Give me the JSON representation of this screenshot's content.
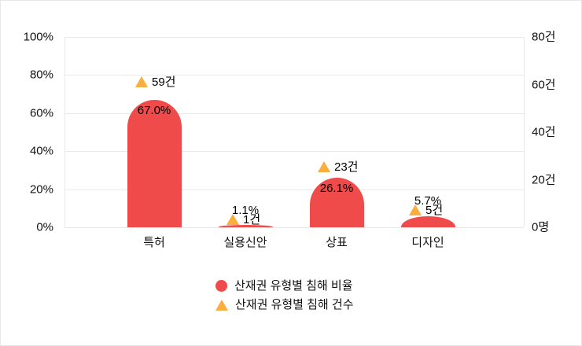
{
  "chart_data": {
    "type": "bar",
    "categories": [
      "특허",
      "실용신안",
      "상표",
      "디자인"
    ],
    "series": [
      {
        "name": "산재권 유형별 침해 비율",
        "type": "bar",
        "axis": "left",
        "unit": "%",
        "values": [
          67.0,
          1.1,
          26.1,
          5.7
        ],
        "labels": [
          "67.0%",
          "1.1%",
          "26.1%",
          "5.7%"
        ],
        "color": "#F04B4B"
      },
      {
        "name": "산재권 유형별 침해 건수",
        "type": "triangle",
        "axis": "right",
        "unit": "건",
        "values": [
          59,
          1,
          23,
          5
        ],
        "labels": [
          "59건",
          "1건",
          "23건",
          "5건"
        ],
        "color": "#FBAE3E"
      }
    ],
    "left_axis": {
      "min": 0,
      "max": 100,
      "ticks": [
        "0%",
        "20%",
        "40%",
        "60%",
        "80%",
        "100%"
      ]
    },
    "right_axis": {
      "min": 0,
      "max": 80,
      "ticks": [
        "0명",
        "20건",
        "40건",
        "60건",
        "80건"
      ]
    },
    "grid": true,
    "legend_position": "bottom"
  },
  "colors": {
    "bar": "#F04B4B",
    "marker": "#FBAE3E",
    "gridline": "#e9e9e9",
    "text": "#111111"
  }
}
